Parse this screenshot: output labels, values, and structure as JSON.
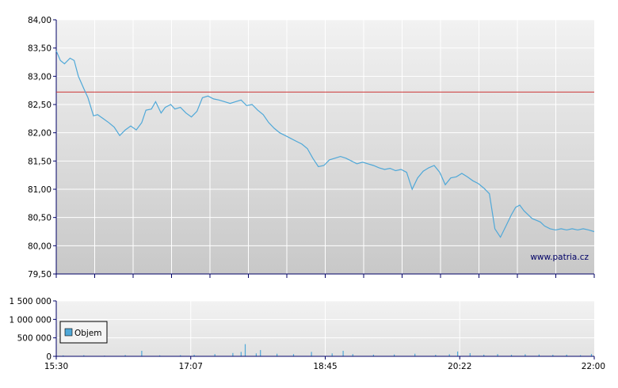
{
  "chart_data": [
    {
      "type": "line",
      "title": "",
      "xlabel": "",
      "ylabel": "",
      "ylim": [
        79.5,
        84.0
      ],
      "y_ticks": [
        "84,00",
        "83,50",
        "83,00",
        "82,50",
        "82,00",
        "81,50",
        "81,00",
        "80,50",
        "80,00",
        "79,50"
      ],
      "y_tick_values": [
        84.0,
        83.5,
        83.0,
        82.5,
        82.0,
        81.5,
        81.0,
        80.5,
        80.0,
        79.5
      ],
      "xlim": [
        "15:30",
        "22:00"
      ],
      "grid": true,
      "reference_line": {
        "value": 82.72,
        "color": "#cc3333"
      },
      "line_color": "#4fa8d8",
      "watermark": "www.patria.cz",
      "series": [
        {
          "x": [
            "15:30",
            "15:33",
            "15:36",
            "15:40",
            "15:43",
            "15:46",
            "15:50",
            "15:53",
            "15:57",
            "16:00",
            "16:04",
            "16:08",
            "16:12",
            "16:16",
            "16:20",
            "16:24",
            "16:28",
            "16:32",
            "16:35",
            "16:39",
            "16:42",
            "16:46",
            "16:49",
            "16:53",
            "16:56",
            "17:00",
            "17:04",
            "17:08",
            "17:12",
            "17:16",
            "17:20",
            "17:24",
            "17:28",
            "17:32",
            "17:36",
            "17:40",
            "17:44",
            "17:48",
            "17:52",
            "17:56",
            "18:00",
            "18:04",
            "18:08",
            "18:12",
            "18:16",
            "18:20",
            "18:24",
            "18:28",
            "18:32",
            "18:36",
            "18:40",
            "18:44",
            "18:48",
            "18:52",
            "18:56",
            "19:00",
            "19:04",
            "19:08",
            "19:12",
            "19:16",
            "19:20",
            "19:24",
            "19:28",
            "19:32",
            "19:36",
            "19:40",
            "19:44",
            "19:48",
            "19:52",
            "19:56",
            "20:00",
            "20:04",
            "20:08",
            "20:12",
            "20:16",
            "20:20",
            "20:24",
            "20:28",
            "20:32",
            "20:36",
            "20:40",
            "20:44",
            "20:48",
            "20:52",
            "20:56",
            "21:00",
            "21:03",
            "21:06",
            "21:09",
            "21:12",
            "21:15",
            "21:18",
            "21:21",
            "21:24",
            "21:28",
            "21:32",
            "21:36",
            "21:40",
            "21:44",
            "21:48",
            "21:52",
            "21:56",
            "22:00"
          ],
          "values": [
            83.45,
            83.28,
            83.22,
            83.32,
            83.28,
            83.0,
            82.78,
            82.62,
            82.3,
            82.32,
            82.25,
            82.18,
            82.1,
            81.95,
            82.05,
            82.12,
            82.05,
            82.18,
            82.4,
            82.42,
            82.55,
            82.35,
            82.45,
            82.5,
            82.42,
            82.45,
            82.35,
            82.28,
            82.38,
            82.62,
            82.65,
            82.6,
            82.58,
            82.55,
            82.52,
            82.55,
            82.58,
            82.48,
            82.5,
            82.4,
            82.32,
            82.18,
            82.08,
            82.0,
            81.95,
            81.9,
            81.85,
            81.8,
            81.72,
            81.55,
            81.4,
            81.42,
            81.52,
            81.55,
            81.58,
            81.55,
            81.5,
            81.45,
            81.48,
            81.45,
            81.42,
            81.38,
            81.35,
            81.37,
            81.33,
            81.35,
            81.3,
            81.0,
            81.2,
            81.32,
            81.38,
            81.42,
            81.3,
            81.08,
            81.2,
            81.22,
            81.28,
            81.22,
            81.15,
            81.1,
            81.02,
            80.92,
            80.3,
            80.15,
            80.35,
            80.55,
            80.68,
            80.72,
            80.62,
            80.55,
            80.48,
            80.45,
            80.42,
            80.35,
            80.3,
            80.28,
            80.3,
            80.28,
            80.3,
            80.28,
            80.3,
            80.28,
            80.25
          ]
        }
      ]
    },
    {
      "type": "bar",
      "title": "",
      "xlabel": "",
      "ylabel": "",
      "ylim": [
        0,
        1500000
      ],
      "y_ticks": [
        "1 500 000",
        "1 000 000",
        "500 000",
        "0"
      ],
      "y_tick_values": [
        1500000,
        1000000,
        500000,
        0
      ],
      "x_ticks": [
        "15:30",
        "17:07",
        "18:45",
        "20:22",
        "22:00"
      ],
      "grid": true,
      "legend": {
        "position": "bottom-left",
        "entries": [
          "Objem"
        ]
      },
      "bar_color": "#4fa8d8",
      "series": [
        {
          "name": "Objem",
          "x": [
            "15:35",
            "15:50",
            "16:05",
            "16:20",
            "16:32",
            "16:45",
            "17:00",
            "17:10",
            "17:25",
            "17:38",
            "17:44",
            "17:47",
            "17:55",
            "17:58",
            "18:10",
            "18:22",
            "18:35",
            "18:50",
            "18:58",
            "19:05",
            "19:20",
            "19:35",
            "19:50",
            "20:05",
            "20:15",
            "20:21",
            "20:30",
            "20:40",
            "20:50",
            "21:00",
            "21:10",
            "21:20",
            "21:30",
            "21:40",
            "21:50",
            "21:58"
          ],
          "values": [
            25000,
            30000,
            20000,
            35000,
            150000,
            25000,
            30000,
            40000,
            60000,
            90000,
            120000,
            330000,
            80000,
            170000,
            70000,
            60000,
            120000,
            80000,
            150000,
            60000,
            45000,
            50000,
            70000,
            40000,
            55000,
            130000,
            85000,
            45000,
            60000,
            40000,
            55000,
            50000,
            40000,
            45000,
            30000,
            65000
          ]
        }
      ]
    }
  ]
}
